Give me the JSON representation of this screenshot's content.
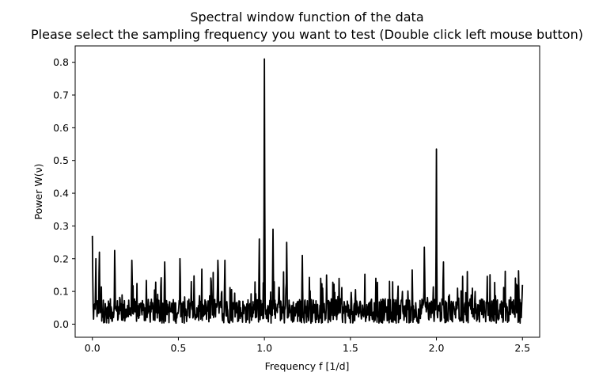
{
  "colors": {
    "background": "#ffffff",
    "line": "#000000",
    "axes": "#000000"
  },
  "chart_data": {
    "type": "line",
    "title": "Spectral window function of the data",
    "subtitle": "Please select the sampling frequency you want to test (Double click left mouse button)",
    "xlabel": "Frequency f [1/d]",
    "ylabel": "Power W(ν)",
    "xlim": [
      -0.1,
      2.6
    ],
    "ylim": [
      -0.04,
      0.85
    ],
    "xticks": [
      0.0,
      0.5,
      1.0,
      1.5,
      2.0,
      2.5
    ],
    "xtick_labels": [
      "0.0",
      "0.5",
      "1.0",
      "1.5",
      "2.0",
      "2.5"
    ],
    "yticks": [
      0.0,
      0.1,
      0.2,
      0.3,
      0.4,
      0.5,
      0.6,
      0.7,
      0.8
    ],
    "ytick_labels": [
      "0.0",
      "0.1",
      "0.2",
      "0.3",
      "0.4",
      "0.5",
      "0.6",
      "0.7",
      "0.8"
    ],
    "grid": false,
    "series": [
      {
        "name": "spectral window",
        "x_start": 0.0,
        "x_end": 2.5,
        "noise_floor": 0.04,
        "peaks": [
          {
            "x": 0.0,
            "y": 0.27
          },
          {
            "x": 0.02,
            "y": 0.2
          },
          {
            "x": 0.04,
            "y": 0.22
          },
          {
            "x": 0.13,
            "y": 0.225
          },
          {
            "x": 0.23,
            "y": 0.195
          },
          {
            "x": 0.42,
            "y": 0.19
          },
          {
            "x": 0.51,
            "y": 0.2
          },
          {
            "x": 0.73,
            "y": 0.195
          },
          {
            "x": 0.77,
            "y": 0.195
          },
          {
            "x": 0.97,
            "y": 0.26
          },
          {
            "x": 1.0,
            "y": 0.81
          },
          {
            "x": 1.05,
            "y": 0.29
          },
          {
            "x": 1.13,
            "y": 0.25
          },
          {
            "x": 1.22,
            "y": 0.21
          },
          {
            "x": 1.93,
            "y": 0.235
          },
          {
            "x": 2.0,
            "y": 0.535
          },
          {
            "x": 2.04,
            "y": 0.19
          },
          {
            "x": 2.5,
            "y": 0.12
          }
        ]
      }
    ]
  }
}
